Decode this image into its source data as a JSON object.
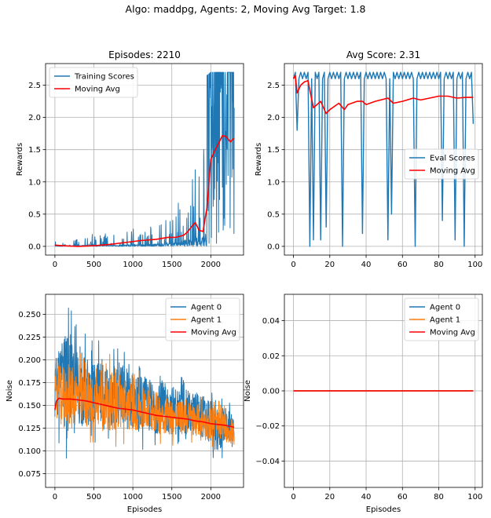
{
  "suptitle": "Algo: maddpg, Agents: 2, Moving Avg Target: 1.8",
  "colors": {
    "blue": "#1f77b4",
    "orange": "#ff7f0e",
    "red": "#ff0000",
    "grid": "#b0b0b0"
  },
  "chart_data": [
    {
      "type": "line",
      "title": "Episodes: 2210",
      "xlabel": "",
      "ylabel": "Rewards",
      "xlim": [
        -120,
        2420
      ],
      "ylim": [
        -0.135,
        2.835
      ],
      "xticks": [
        0,
        500,
        1000,
        1500,
        2000
      ],
      "yticks": [
        0.0,
        0.5,
        1.0,
        1.5,
        2.0,
        2.5
      ],
      "grid": true,
      "legend": "upper-left",
      "series": [
        {
          "name": "Training Scores",
          "color": "#1f77b4",
          "kind": "noisy-envelope",
          "x": [
            0,
            200,
            400,
            600,
            800,
            1000,
            1200,
            1300,
            1400,
            1500,
            1600,
            1700,
            1750,
            1800,
            1850,
            1900,
            1950,
            2000,
            2100,
            2200,
            2300
          ],
          "low": [
            0,
            0,
            0,
            0,
            0,
            0,
            0,
            0,
            0,
            0,
            0,
            0,
            0,
            0,
            0,
            0,
            0,
            0,
            0,
            0,
            0
          ],
          "high": [
            0.1,
            0.1,
            0.19,
            0.2,
            0.2,
            0.3,
            0.3,
            0.4,
            0.45,
            0.55,
            0.7,
            1.2,
            0.9,
            1.5,
            1.3,
            1.55,
            2.65,
            2.7,
            2.7,
            2.7,
            2.7
          ]
        },
        {
          "name": "Moving Avg",
          "color": "#ff0000",
          "x": [
            0,
            100,
            300,
            500,
            700,
            900,
            1100,
            1300,
            1450,
            1550,
            1650,
            1700,
            1750,
            1800,
            1850,
            1900,
            1950,
            2000,
            2050,
            2100,
            2150,
            2200,
            2250,
            2300
          ],
          "y": [
            0.02,
            0.01,
            0.0,
            0.01,
            0.03,
            0.06,
            0.09,
            0.11,
            0.14,
            0.14,
            0.17,
            0.22,
            0.3,
            0.37,
            0.25,
            0.23,
            0.6,
            1.35,
            1.48,
            1.6,
            1.72,
            1.7,
            1.62,
            1.68
          ]
        }
      ]
    },
    {
      "type": "line",
      "title": "Avg Score: 2.31",
      "xlabel": "",
      "ylabel": "Rewards",
      "xlim": [
        -5,
        104
      ],
      "ylim": [
        -0.135,
        2.835
      ],
      "xticks": [
        0,
        20,
        40,
        60,
        80,
        100
      ],
      "yticks": [
        0.0,
        0.5,
        1.0,
        1.5,
        2.0,
        2.5
      ],
      "grid": true,
      "legend": "center-right",
      "series": [
        {
          "name": "Eval Scores",
          "color": "#1f77b4",
          "x": [
            0,
            1,
            2,
            3,
            4,
            5,
            6,
            7,
            8,
            9,
            10,
            11,
            12,
            13,
            14,
            15,
            16,
            17,
            18,
            19,
            20,
            21,
            22,
            23,
            24,
            25,
            26,
            27,
            28,
            29,
            30,
            31,
            32,
            33,
            34,
            35,
            36,
            37,
            38,
            39,
            40,
            41,
            42,
            43,
            44,
            45,
            46,
            47,
            48,
            49,
            50,
            51,
            52,
            53,
            54,
            55,
            56,
            57,
            58,
            59,
            60,
            61,
            62,
            63,
            64,
            65,
            66,
            67,
            68,
            69,
            70,
            71,
            72,
            73,
            74,
            75,
            76,
            77,
            78,
            79,
            80,
            81,
            82,
            83,
            84,
            85,
            86,
            87,
            88,
            89,
            90,
            91,
            92,
            93,
            94,
            95,
            96,
            97,
            98,
            99
          ],
          "y": [
            2.6,
            2.7,
            1.8,
            2.6,
            2.7,
            2.6,
            2.7,
            2.6,
            2.7,
            0.0,
            2.6,
            0.1,
            2.7,
            2.6,
            2.7,
            0.1,
            2.6,
            2.7,
            0.3,
            2.6,
            2.7,
            2.6,
            2.7,
            2.6,
            2.7,
            2.6,
            2.7,
            0.0,
            2.6,
            2.7,
            2.6,
            2.7,
            2.6,
            2.7,
            2.6,
            2.7,
            2.6,
            2.7,
            0.2,
            2.6,
            2.7,
            2.6,
            2.7,
            2.6,
            2.7,
            2.6,
            2.7,
            2.6,
            2.7,
            2.6,
            2.7,
            2.6,
            0.1,
            2.6,
            0.5,
            2.7,
            2.6,
            2.7,
            2.6,
            2.7,
            2.6,
            2.7,
            2.6,
            2.7,
            2.6,
            2.7,
            2.6,
            0.0,
            2.6,
            2.7,
            2.6,
            2.7,
            2.6,
            2.7,
            2.6,
            2.7,
            2.6,
            2.7,
            2.6,
            2.7,
            2.6,
            2.7,
            0.4,
            2.6,
            2.7,
            2.6,
            2.7,
            2.6,
            2.7,
            0.1,
            2.6,
            2.7,
            2.6,
            2.7,
            0.0,
            2.6,
            2.7,
            2.6,
            2.7,
            1.9
          ]
        },
        {
          "name": "Moving Avg",
          "color": "#ff0000",
          "x": [
            0,
            1,
            2,
            4,
            6,
            8,
            9,
            11,
            13,
            15,
            17,
            18,
            20,
            25,
            28,
            30,
            35,
            38,
            40,
            45,
            52,
            55,
            60,
            66,
            70,
            80,
            85,
            90,
            95,
            99
          ],
          "y": [
            2.6,
            2.65,
            2.38,
            2.5,
            2.55,
            2.57,
            2.42,
            2.15,
            2.2,
            2.25,
            2.12,
            2.06,
            2.12,
            2.22,
            2.12,
            2.2,
            2.25,
            2.25,
            2.2,
            2.25,
            2.3,
            2.22,
            2.25,
            2.3,
            2.27,
            2.33,
            2.33,
            2.3,
            2.31,
            2.31
          ]
        }
      ]
    },
    {
      "type": "line",
      "title": "",
      "xlabel": "Episodes",
      "ylabel": "Noise",
      "xlim": [
        -120,
        2420
      ],
      "ylim": [
        0.06,
        0.272
      ],
      "xticks": [
        0,
        500,
        1000,
        1500,
        2000
      ],
      "yticks": [
        0.075,
        0.1,
        0.125,
        0.15,
        0.175,
        0.2,
        0.225,
        0.25
      ],
      "grid": true,
      "legend": "upper-right",
      "series": [
        {
          "name": "Agent 0",
          "color": "#1f77b4",
          "kind": "noisy-envelope",
          "x": [
            0,
            100,
            140,
            300,
            500,
            700,
            800,
            1000,
            1200,
            1500,
            1800,
            2000,
            2030,
            2200,
            2300
          ],
          "low": [
            0.115,
            0.1,
            0.09,
            0.1,
            0.1,
            0.098,
            0.1,
            0.1,
            0.1,
            0.1,
            0.1,
            0.095,
            0.07,
            0.098,
            0.1
          ],
          "high": [
            0.22,
            0.25,
            0.265,
            0.24,
            0.22,
            0.225,
            0.225,
            0.21,
            0.2,
            0.19,
            0.18,
            0.175,
            0.17,
            0.16,
            0.145
          ]
        },
        {
          "name": "Agent 1",
          "color": "#ff7f0e",
          "kind": "noisy-envelope",
          "x": [
            0,
            100,
            300,
            500,
            800,
            1000,
            1200,
            1500,
            1800,
            2000,
            2200,
            2300
          ],
          "low": [
            0.12,
            0.11,
            0.105,
            0.105,
            0.1,
            0.105,
            0.105,
            0.105,
            0.105,
            0.1,
            0.1,
            0.095
          ],
          "high": [
            0.21,
            0.215,
            0.21,
            0.2,
            0.21,
            0.19,
            0.185,
            0.17,
            0.165,
            0.16,
            0.15,
            0.145
          ]
        },
        {
          "name": "Moving Avg",
          "color": "#ff0000",
          "x": [
            0,
            20,
            50,
            100,
            200,
            300,
            400,
            500,
            600,
            700,
            800,
            900,
            1000,
            1100,
            1200,
            1300,
            1400,
            1500,
            1600,
            1700,
            1800,
            1900,
            2000,
            2100,
            2200,
            2300
          ],
          "y": [
            0.145,
            0.155,
            0.158,
            0.157,
            0.157,
            0.156,
            0.155,
            0.153,
            0.151,
            0.149,
            0.147,
            0.146,
            0.145,
            0.143,
            0.141,
            0.139,
            0.138,
            0.137,
            0.136,
            0.135,
            0.133,
            0.132,
            0.13,
            0.129,
            0.128,
            0.126
          ]
        }
      ]
    },
    {
      "type": "line",
      "title": "",
      "xlabel": "Episodes",
      "ylabel": "Noise",
      "xlim": [
        -5,
        104
      ],
      "ylim": [
        -0.055,
        0.055
      ],
      "xticks": [
        0,
        20,
        40,
        60,
        80,
        100
      ],
      "yticks": [
        -0.04,
        -0.02,
        0.0,
        0.02,
        0.04
      ],
      "ytick_labels": [
        "−0.04",
        "−0.02",
        "0.00",
        "0.02",
        "0.04"
      ],
      "grid": true,
      "legend": "upper-right",
      "series": [
        {
          "name": "Agent 0",
          "color": "#1f77b4",
          "x": [
            0,
            99
          ],
          "y": [
            0,
            0
          ]
        },
        {
          "name": "Agent 1",
          "color": "#ff7f0e",
          "x": [
            0,
            99
          ],
          "y": [
            0,
            0
          ]
        },
        {
          "name": "Moving Avg",
          "color": "#ff0000",
          "x": [
            0,
            99
          ],
          "y": [
            0,
            0
          ]
        }
      ]
    }
  ]
}
